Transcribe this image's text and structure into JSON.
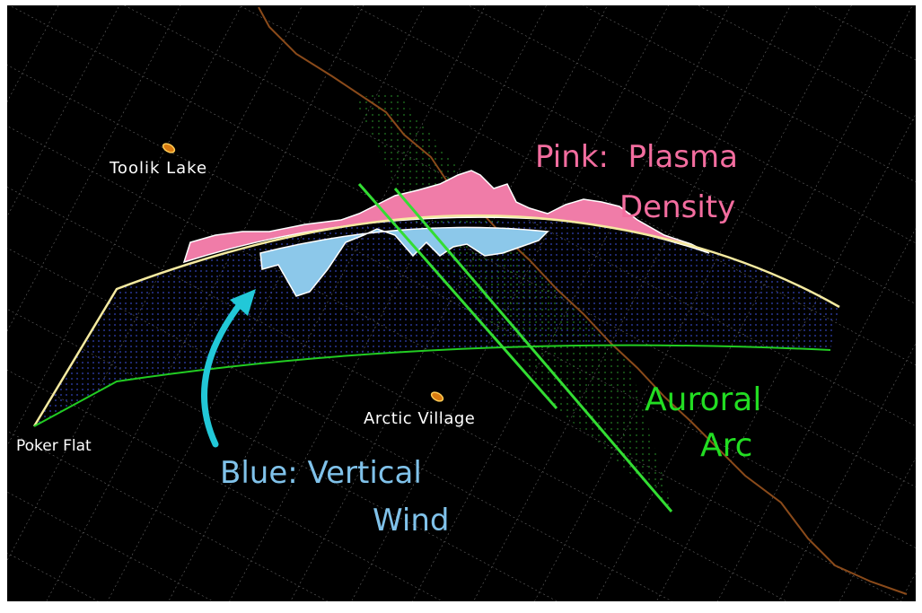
{
  "places": [
    {
      "label": "Toolik Lake"
    },
    {
      "label": "Arctic Village"
    },
    {
      "label": "Poker Flat"
    }
  ],
  "annotations": [
    {
      "lines": [
        "Pink:  Plasma",
        "Density"
      ]
    },
    {
      "lines": [
        "Blue: Vertical",
        "Wind"
      ]
    },
    {
      "lines": [
        "Auroral",
        "Arc"
      ]
    }
  ]
}
